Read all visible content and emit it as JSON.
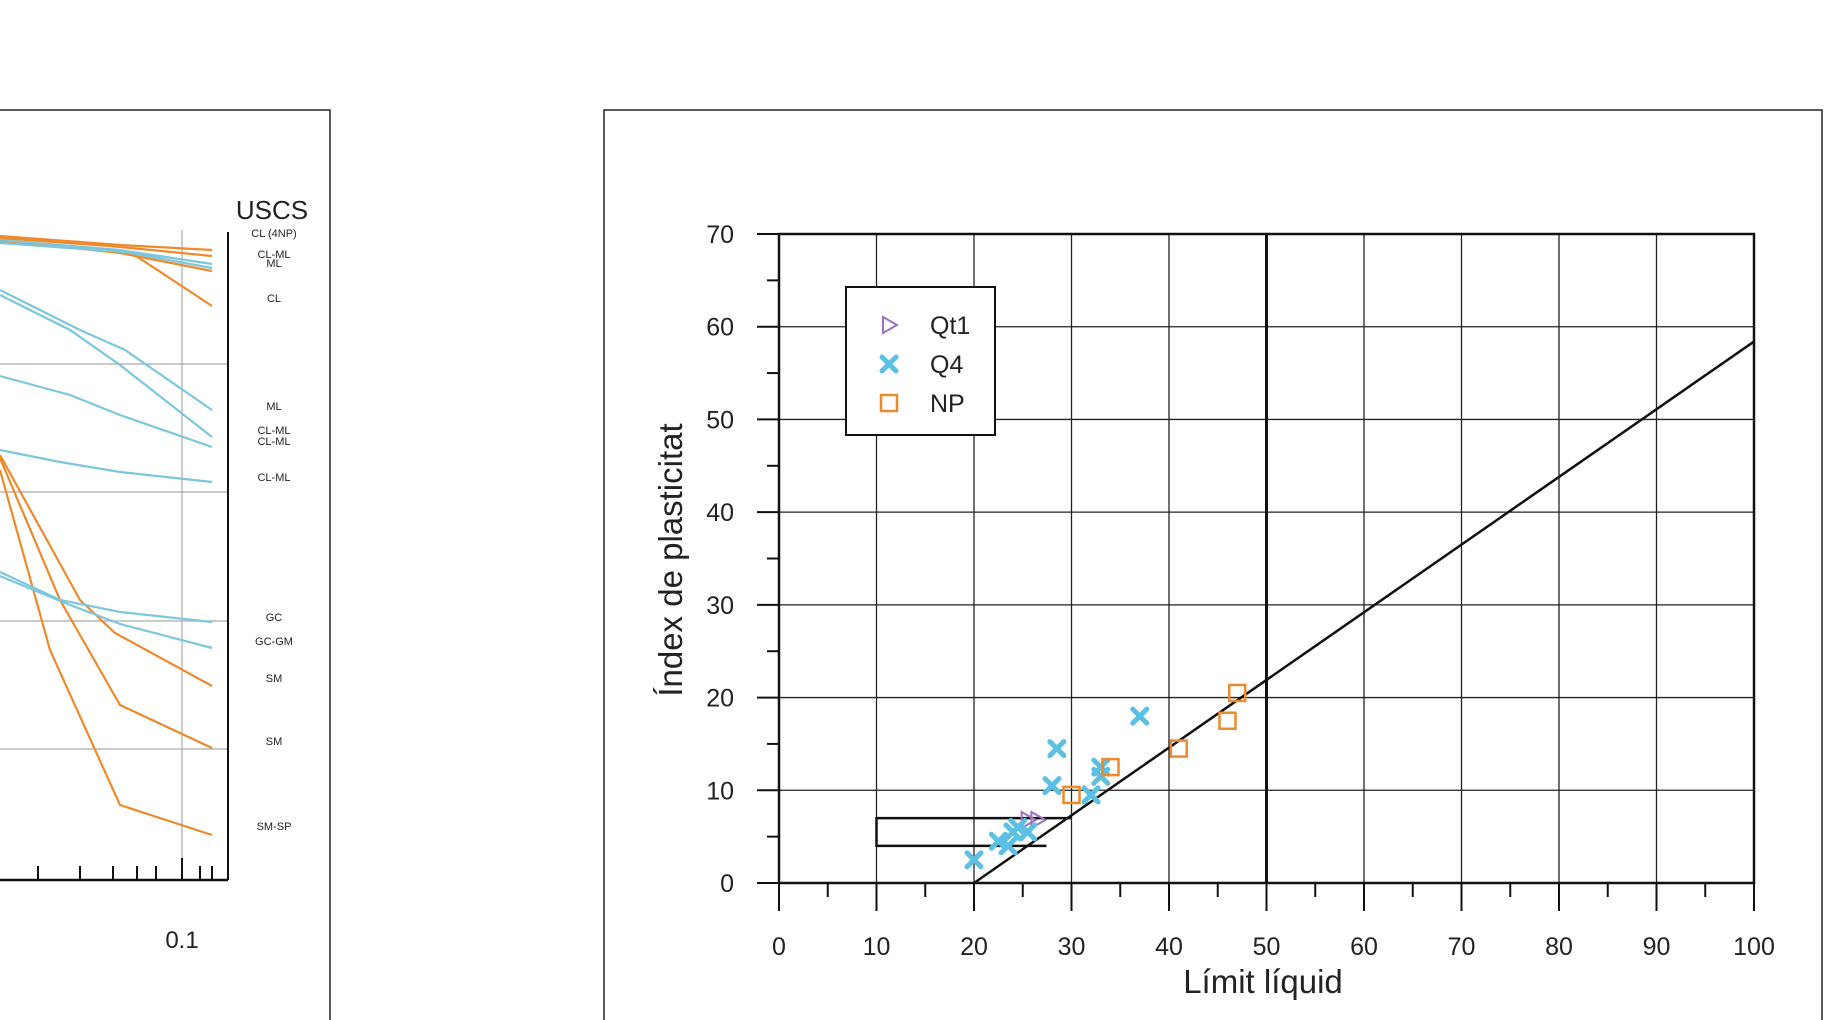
{
  "colors": {
    "q4": "#5bc0e3",
    "np": "#ee8a2b",
    "qt1": "#a070c0",
    "frame": "#111111",
    "grid": "#aaaaaa",
    "left_orange": "#ee8a2b",
    "left_blue": "#7cc6de"
  },
  "chart_data": [
    {
      "type": "line",
      "title": "",
      "xlabel": "",
      "ylabel": "",
      "x_scale": "log",
      "grid": true,
      "x_tick_labels": [
        "0.1"
      ],
      "uscs_header": "USCS",
      "uscs_labels": [
        "CL (4NP)",
        "CL-ML",
        "ML",
        "CL",
        "ML",
        "CL-ML",
        "CL-ML",
        "CL-ML",
        "GC",
        "GC-GM",
        "SM",
        "SM",
        "SM-SP"
      ],
      "series_note": "grain-size curves, partially cropped at left edge; blue and orange families"
    },
    {
      "type": "scatter",
      "title": "",
      "xlabel": "Límit líquid",
      "ylabel": "Índex de plasticitat",
      "xlim": [
        0,
        100
      ],
      "ylim": [
        0,
        70
      ],
      "x_ticks": [
        "0",
        "10",
        "20",
        "30",
        "40",
        "50",
        "60",
        "70",
        "80",
        "90",
        "100"
      ],
      "y_ticks": [
        "0",
        "10",
        "20",
        "30",
        "40",
        "50",
        "60",
        "70"
      ],
      "grid": true,
      "legend_position": "top-left",
      "reference_lines": {
        "a_line": {
          "x": [
            20,
            100
          ],
          "y": [
            0,
            58.4
          ]
        },
        "ll_50": {
          "x": [
            50,
            50
          ],
          "y": [
            0,
            70
          ]
        },
        "cl_ml_zone": {
          "x": [
            10,
            30
          ],
          "y_low": 4,
          "y_high": 7
        }
      },
      "series": [
        {
          "name": "Qt1",
          "marker": "triangle-right",
          "x": [
            25.5,
            26.5
          ],
          "y": [
            6.8,
            6.8
          ]
        },
        {
          "name": "Q4",
          "marker": "x",
          "x": [
            20,
            22.5,
            23.5,
            24,
            24.5,
            25.5,
            28,
            28.5,
            32,
            33,
            33,
            37
          ],
          "y": [
            2.5,
            4.5,
            4,
            5.5,
            6,
            5.5,
            10.5,
            14.5,
            9.5,
            11.5,
            12.5,
            18
          ]
        },
        {
          "name": "NP",
          "marker": "square",
          "x": [
            30,
            34,
            41,
            46,
            47
          ],
          "y": [
            9.5,
            12.5,
            14.5,
            17.5,
            20.5
          ]
        }
      ]
    }
  ]
}
